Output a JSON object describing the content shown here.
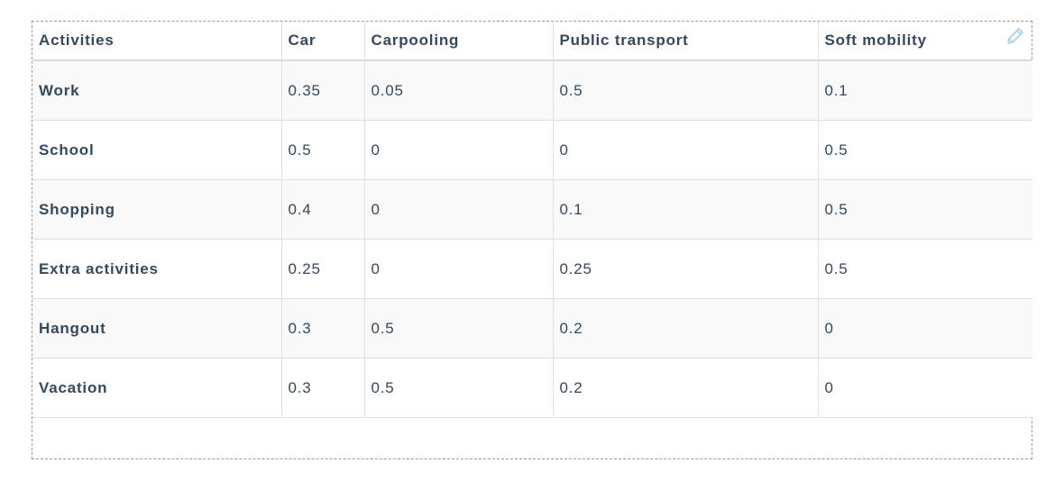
{
  "table": {
    "columns": [
      "Activities",
      "Car",
      "Carpooling",
      "Public transport",
      "Soft mobility"
    ],
    "rows": [
      [
        "Work",
        "0.35",
        "0.05",
        "0.5",
        "0.1"
      ],
      [
        "School",
        "0.5",
        "0",
        "0",
        "0.5"
      ],
      [
        "Shopping",
        "0.4",
        "0",
        "0.1",
        "0.5"
      ],
      [
        "Extra activities",
        "0.25",
        "0",
        "0.25",
        "0.5"
      ],
      [
        "Hangout",
        "0.3",
        "0.5",
        "0.2",
        "0"
      ],
      [
        "Vacation",
        "0.3",
        "0.5",
        "0.2",
        "0"
      ]
    ]
  },
  "toolbar": {
    "edit_icon": "pencil-icon"
  },
  "colors": {
    "text": "#34495e",
    "border": "#e0e0e0",
    "stripe": "#f9f9f9",
    "edit_icon": "#a9cff0"
  }
}
